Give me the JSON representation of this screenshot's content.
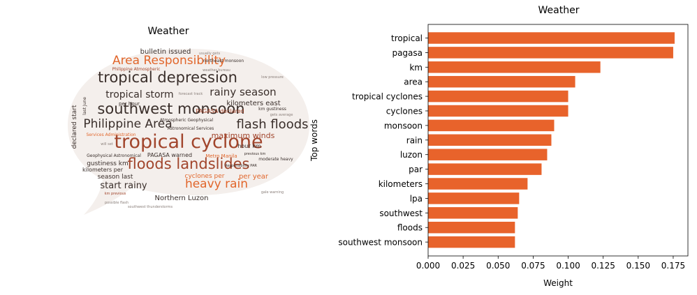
{
  "chart_data": [
    {
      "type": "wordcloud",
      "title": "Weather",
      "colors": {
        "dark": "#3a2f2b",
        "orange": "#e1662b",
        "rust": "#a1452c",
        "gray": "#8a7f7a"
      },
      "words": [
        {
          "text": "tropical cyclone",
          "weight": 1.0,
          "color": "rust"
        },
        {
          "text": "floods landslides",
          "weight": 0.74,
          "color": "rust"
        },
        {
          "text": "southwest monsoon",
          "weight": 0.72,
          "color": "dark"
        },
        {
          "text": "tropical depression",
          "weight": 0.7,
          "color": "dark"
        },
        {
          "text": "flash floods",
          "weight": 0.66,
          "color": "dark"
        },
        {
          "text": "Philippine Area",
          "weight": 0.58,
          "color": "dark"
        },
        {
          "text": "Area Responsibility",
          "weight": 0.56,
          "color": "orange"
        },
        {
          "text": "heavy rain",
          "weight": 0.56,
          "color": "orange"
        },
        {
          "text": "rainy season",
          "weight": 0.5,
          "color": "dark"
        },
        {
          "text": "tropical storm",
          "weight": 0.44,
          "color": "dark"
        },
        {
          "text": "start rainy",
          "weight": 0.4,
          "color": "dark"
        },
        {
          "text": "maximum winds",
          "weight": 0.33,
          "color": "rust"
        },
        {
          "text": "Northern Luzon",
          "weight": 0.3,
          "color": "dark"
        },
        {
          "text": "kilometers east",
          "weight": 0.3,
          "color": "dark"
        },
        {
          "text": "bulletin issued",
          "weight": 0.3,
          "color": "dark"
        },
        {
          "text": "per year",
          "weight": 0.29,
          "color": "orange"
        },
        {
          "text": "cyclones per",
          "weight": 0.28,
          "color": "orange"
        },
        {
          "text": "gustiness km",
          "weight": 0.26,
          "color": "dark"
        },
        {
          "text": "season last",
          "weight": 0.26,
          "color": "dark"
        },
        {
          "text": "declared start",
          "weight": 0.25,
          "color": "dark"
        },
        {
          "text": "PAGASA declared",
          "weight": 0.22,
          "color": "rust"
        },
        {
          "text": "PAGASA warned",
          "weight": 0.2,
          "color": "dark"
        },
        {
          "text": "kilometers per",
          "weight": 0.18,
          "color": "dark"
        },
        {
          "text": "hour km",
          "weight": 0.18,
          "color": "dark"
        },
        {
          "text": "per hour",
          "weight": 0.18,
          "color": "dark"
        },
        {
          "text": "Metro Manila",
          "weight": 0.14,
          "color": "orange"
        },
        {
          "text": "Atmospheric Geophysical",
          "weight": 0.12,
          "color": "dark"
        },
        {
          "text": "Astronomical Services",
          "weight": 0.12,
          "color": "dark"
        },
        {
          "text": "Philippine Atmospheric",
          "weight": 0.12,
          "color": "rust"
        },
        {
          "text": "northeast monsoon",
          "weight": 0.12,
          "color": "dark"
        },
        {
          "text": "Geophysical Astronomical",
          "weight": 0.12,
          "color": "dark"
        },
        {
          "text": "Services Administration",
          "weight": 0.12,
          "color": "orange"
        },
        {
          "text": "last June",
          "weight": 0.12,
          "color": "dark"
        },
        {
          "text": "moderate heavy",
          "weight": 0.1,
          "color": "dark"
        },
        {
          "text": "km gustiness",
          "weight": 0.1,
          "color": "dark"
        },
        {
          "text": "previous km",
          "weight": 0.1,
          "color": "dark"
        },
        {
          "text": "Responsibility PAR",
          "weight": 0.1,
          "color": "dark"
        },
        {
          "text": "weather bureau",
          "weight": 0.1,
          "color": "gray"
        },
        {
          "text": "low pressure",
          "weight": 0.1,
          "color": "gray"
        },
        {
          "text": "km previous",
          "weight": 0.1,
          "color": "rust"
        },
        {
          "text": "gale warning",
          "weight": 0.1,
          "color": "gray"
        },
        {
          "text": "gets average",
          "weight": 0.1,
          "color": "gray"
        },
        {
          "text": "usually gets",
          "weight": 0.1,
          "color": "gray"
        },
        {
          "text": "forecast track",
          "weight": 0.1,
          "color": "gray"
        },
        {
          "text": "possible flash",
          "weight": 0.1,
          "color": "gray"
        },
        {
          "text": "southwest thunderstorms",
          "weight": 0.1,
          "color": "gray"
        },
        {
          "text": "will set",
          "weight": 0.1,
          "color": "gray"
        }
      ]
    },
    {
      "type": "bar",
      "orientation": "horizontal",
      "title": "Weather",
      "xlabel": "Weight",
      "ylabel": "Top words",
      "xlim": [
        0,
        0.1855
      ],
      "xticks": [
        "0.000",
        "0.025",
        "0.050",
        "0.075",
        "0.100",
        "0.125",
        "0.150",
        "0.175"
      ],
      "xtick_values": [
        0,
        0.025,
        0.05,
        0.075,
        0.1,
        0.125,
        0.15,
        0.175
      ],
      "color": "#e8632b",
      "categories": [
        "tropical",
        "pagasa",
        "km",
        "area",
        "tropical cyclones",
        "cyclones",
        "monsoon",
        "rain",
        "luzon",
        "par",
        "kilometers",
        "lpa",
        "southwest",
        "floods",
        "southwest monsoon"
      ],
      "values": [
        0.176,
        0.175,
        0.123,
        0.105,
        0.1,
        0.1,
        0.09,
        0.088,
        0.085,
        0.081,
        0.071,
        0.065,
        0.064,
        0.062,
        0.062
      ]
    }
  ]
}
